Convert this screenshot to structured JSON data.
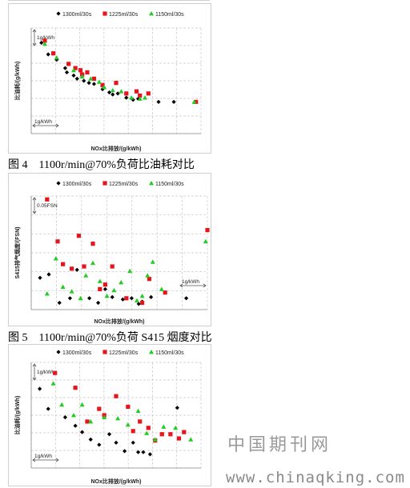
{
  "captions": {
    "fig4": "图 4　1100r/min@70%负荷比油耗对比",
    "fig5": "图 5　1100r/min@70%负荷 S415 烟度对比"
  },
  "watermark": {
    "cn": "中国期刊网",
    "url": "www.chinaqking.com"
  },
  "colors": {
    "s1300": "#000000",
    "s1225": "#e8141c",
    "s1150": "#22cc22"
  },
  "chart_data": [
    {
      "type": "scatter",
      "xlabel": "NOx比排放/(g/kWh)",
      "ylabel": "比油耗/(g/kWh)",
      "ref_y": "1g/kWh",
      "ref_x": "1g/kWh",
      "xlim": [
        0,
        10
      ],
      "ylim": [
        0,
        10
      ],
      "series": [
        {
          "name": "1300ml/30s",
          "marker": "diamond",
          "points": [
            [
              0.6,
              8.6
            ],
            [
              1.0,
              7.5
            ],
            [
              1.5,
              7.0
            ],
            [
              2.0,
              6.2
            ],
            [
              2.1,
              5.8
            ],
            [
              2.5,
              5.5
            ],
            [
              2.7,
              5.2
            ],
            [
              3.1,
              5.0
            ],
            [
              3.4,
              4.8
            ],
            [
              3.7,
              4.7
            ],
            [
              4.2,
              4.2
            ],
            [
              4.6,
              3.9
            ],
            [
              4.8,
              3.7
            ],
            [
              5.1,
              3.8
            ],
            [
              5.6,
              3.4
            ],
            [
              6.0,
              3.2
            ],
            [
              6.3,
              3.3
            ],
            [
              7.5,
              3.0
            ],
            [
              8.4,
              3.0
            ]
          ]
        },
        {
          "name": "1225ml/30s",
          "marker": "square",
          "points": [
            [
              0.8,
              8.8
            ],
            [
              1.3,
              7.6
            ],
            [
              2.2,
              6.6
            ],
            [
              2.6,
              6.2
            ],
            [
              2.9,
              6.0
            ],
            [
              3.0,
              5.6
            ],
            [
              3.3,
              5.8
            ],
            [
              3.7,
              5.2
            ],
            [
              4.2,
              4.6
            ],
            [
              5.0,
              4.8
            ],
            [
              5.6,
              3.8
            ],
            [
              6.2,
              4.0
            ],
            [
              6.4,
              3.6
            ],
            [
              6.9,
              3.8
            ],
            [
              9.7,
              3.0
            ]
          ]
        },
        {
          "name": "1150ml/30s",
          "marker": "triangle",
          "points": [
            [
              0.8,
              8.5
            ],
            [
              1.5,
              7.2
            ],
            [
              2.5,
              6.0
            ],
            [
              3.0,
              5.4
            ],
            [
              3.5,
              5.2
            ],
            [
              4.0,
              4.9
            ],
            [
              4.3,
              4.4
            ],
            [
              4.8,
              4.1
            ],
            [
              5.3,
              4.0
            ],
            [
              5.9,
              3.4
            ],
            [
              6.4,
              3.3
            ],
            [
              6.7,
              3.4
            ],
            [
              9.6,
              3.0
            ]
          ]
        }
      ]
    },
    {
      "type": "scatter",
      "xlabel": "NOx比排放/(g/kWh)",
      "ylabel": "S415排气烟度/(FSN)",
      "ref_y": "0.05FSN",
      "ref_x": "1g/kWh",
      "xlim": [
        0,
        10
      ],
      "ylim": [
        0,
        10
      ],
      "series": [
        {
          "name": "1300ml/30s",
          "marker": "diamond",
          "points": [
            [
              0.5,
              2.8
            ],
            [
              1.0,
              3.1
            ],
            [
              1.6,
              0.6
            ],
            [
              2.2,
              1.0
            ],
            [
              2.6,
              3.5
            ],
            [
              3.3,
              1.0
            ],
            [
              3.8,
              0.6
            ],
            [
              4.2,
              1.8
            ],
            [
              4.6,
              1.1
            ],
            [
              5.2,
              0.9
            ],
            [
              5.7,
              1.0
            ],
            [
              6.1,
              0.5
            ],
            [
              6.3,
              0.7
            ],
            [
              6.8,
              1.1
            ],
            [
              8.8,
              1.0
            ]
          ]
        },
        {
          "name": "1225ml/30s",
          "marker": "square",
          "points": [
            [
              0.9,
              9.7
            ],
            [
              1.5,
              6.0
            ],
            [
              1.8,
              4.0
            ],
            [
              2.3,
              3.6
            ],
            [
              2.7,
              6.5
            ],
            [
              3.0,
              3.8
            ],
            [
              3.5,
              5.8
            ],
            [
              3.9,
              1.8
            ],
            [
              4.2,
              2.2
            ],
            [
              4.6,
              3.8
            ],
            [
              5.4,
              1.0
            ],
            [
              6.3,
              0.6
            ],
            [
              6.7,
              2.7
            ],
            [
              7.6,
              1.5
            ],
            [
              10.0,
              7.0
            ]
          ]
        },
        {
          "name": "1150ml/30s",
          "marker": "triangle",
          "points": [
            [
              0.9,
              1.4
            ],
            [
              1.4,
              4.5
            ],
            [
              1.8,
              2.0
            ],
            [
              2.3,
              1.6
            ],
            [
              2.8,
              1.0
            ],
            [
              3.1,
              3.0
            ],
            [
              3.5,
              4.1
            ],
            [
              3.9,
              2.5
            ],
            [
              4.3,
              1.2
            ],
            [
              4.7,
              1.7
            ],
            [
              5.1,
              2.4
            ],
            [
              5.6,
              3.4
            ],
            [
              6.0,
              0.8
            ],
            [
              6.3,
              1.2
            ],
            [
              6.6,
              3.0
            ],
            [
              6.9,
              4.2
            ],
            [
              7.4,
              1.8
            ],
            [
              9.9,
              6.0
            ]
          ]
        }
      ]
    },
    {
      "type": "scatter",
      "xlabel": "NOx比排放/(g/kWh)",
      "ylabel": "比油耗/(g/kWh)",
      "ref_y": "1g/kWh",
      "ref_x": "1g/kWh",
      "xlim": [
        0,
        10
      ],
      "ylim": [
        0,
        10
      ],
      "series": [
        {
          "name": "1300ml/30s",
          "marker": "diamond",
          "points": [
            [
              0.5,
              7.5
            ],
            [
              1.0,
              5.6
            ],
            [
              2.0,
              4.8
            ],
            [
              2.6,
              4.0
            ],
            [
              3.0,
              3.4
            ],
            [
              3.5,
              2.7
            ],
            [
              4.0,
              2.2
            ],
            [
              4.6,
              3.2
            ],
            [
              5.0,
              2.4
            ],
            [
              5.5,
              1.6
            ],
            [
              6.0,
              2.4
            ],
            [
              6.3,
              1.5
            ],
            [
              6.6,
              1.5
            ],
            [
              7.0,
              1.3
            ],
            [
              8.6,
              5.7
            ]
          ]
        },
        {
          "name": "1225ml/30s",
          "marker": "square",
          "points": [
            [
              1.4,
              9.0
            ],
            [
              2.6,
              7.6
            ],
            [
              3.3,
              4.4
            ],
            [
              4.0,
              5.6
            ],
            [
              4.3,
              5.0
            ],
            [
              5.0,
              6.8
            ],
            [
              5.7,
              5.8
            ],
            [
              6.0,
              3.5
            ],
            [
              6.4,
              4.4
            ],
            [
              6.9,
              3.8
            ],
            [
              7.3,
              2.6
            ],
            [
              7.7,
              3.2
            ],
            [
              8.2,
              3.2
            ],
            [
              8.7,
              2.8
            ],
            [
              9.0,
              3.4
            ]
          ]
        },
        {
          "name": "1150ml/30s",
          "marker": "triangle",
          "points": [
            [
              1.3,
              8.0
            ],
            [
              1.8,
              6.0
            ],
            [
              2.5,
              5.0
            ],
            [
              3.0,
              6.0
            ],
            [
              3.5,
              4.4
            ],
            [
              4.3,
              4.8
            ],
            [
              5.1,
              4.7
            ],
            [
              5.7,
              4.1
            ],
            [
              6.3,
              5.4
            ],
            [
              6.8,
              3.3
            ],
            [
              7.3,
              2.7
            ],
            [
              7.8,
              3.9
            ],
            [
              8.5,
              3.8
            ],
            [
              9.4,
              2.7
            ]
          ]
        }
      ]
    }
  ]
}
